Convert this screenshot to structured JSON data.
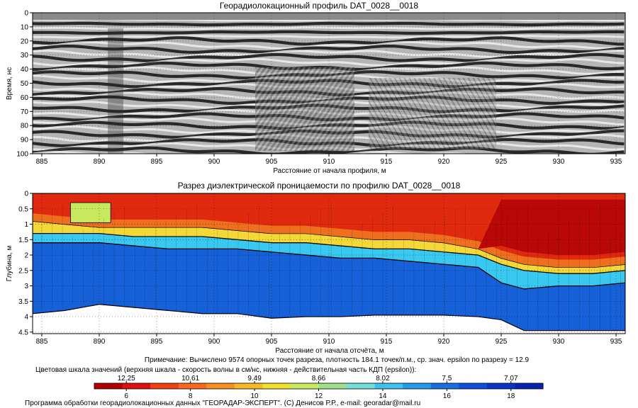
{
  "chart_data": [
    {
      "type": "heatmap",
      "subtype": "radargram",
      "title": "Георадиолокационный профиль  DAT_0028__0018",
      "xlabel": "Расстояние от начала профиля, м",
      "ylabel": "Время, нс",
      "xlim": [
        884.2,
        935.8
      ],
      "ylim": [
        0,
        100
      ],
      "y_inverted": true,
      "x_ticks": [
        885,
        890,
        895,
        900,
        905,
        910,
        915,
        920,
        925,
        930,
        935
      ],
      "y_ticks": [
        0,
        10,
        20,
        30,
        40,
        50,
        60,
        70,
        80,
        90,
        100
      ],
      "colormap": "grayscale",
      "grid": true
    },
    {
      "type": "heatmap",
      "subtype": "section",
      "title": "Разрез диэлектрической проницаемости по профилю DAT_0028__0018",
      "xlabel": "Расстояние от начала отсчёта, м",
      "ylabel": "Глубина, м",
      "xlim": [
        884.2,
        935.8
      ],
      "ylim": [
        0,
        4.55
      ],
      "y_inverted": true,
      "x_ticks": [
        885,
        890,
        895,
        900,
        905,
        910,
        915,
        920,
        925,
        930,
        935
      ],
      "y_ticks": [
        0,
        0.5,
        1,
        1.5,
        2,
        2.5,
        3,
        3.5,
        4,
        4.5
      ],
      "y_tick_labels": [
        "0",
        "0.5",
        "1",
        "1.5",
        "2",
        "2.5",
        "3",
        "3.5",
        "4",
        "4.5"
      ],
      "grid": true,
      "layer_boundaries": {
        "x": [
          884.2,
          887,
          890,
          893,
          896,
          899,
          902,
          905,
          908,
          911,
          914,
          917,
          920,
          923,
          925,
          927,
          930,
          933,
          935.8
        ],
        "red_bottom": [
          0.9,
          1.0,
          1.1,
          1.1,
          1.1,
          1.1,
          1.2,
          1.3,
          1.3,
          1.4,
          1.5,
          1.5,
          1.6,
          1.8,
          2.1,
          2.3,
          2.4,
          2.4,
          2.3
        ],
        "yellow_bottom": [
          1.3,
          1.3,
          1.3,
          1.4,
          1.4,
          1.4,
          1.5,
          1.6,
          1.6,
          1.7,
          1.8,
          1.8,
          1.9,
          2.0,
          2.3,
          2.5,
          2.6,
          2.6,
          2.5
        ],
        "cyan_bottom": [
          1.6,
          1.6,
          1.6,
          1.7,
          1.8,
          1.8,
          1.8,
          1.9,
          2.0,
          2.1,
          2.1,
          2.2,
          2.3,
          2.4,
          2.9,
          3.1,
          3.0,
          3.0,
          2.9
        ],
        "data_bottom": [
          3.9,
          3.8,
          3.6,
          3.7,
          3.8,
          3.9,
          3.9,
          4.05,
          4.0,
          4.0,
          3.95,
          3.95,
          3.95,
          4.0,
          4.1,
          4.45,
          4.45,
          4.45,
          4.45
        ]
      }
    }
  ],
  "note": "Примечание: Вычислено 9574 опорных точек разреза, плотность 184.1 точек/п.м., ср. знач. epsilon по разрезу = 12.9",
  "colorbar": {
    "caption": "Цветовая шкала значений (верхняя шкала - скорость волны в см/нс, нижняя - действительная часть КДП (epsilon)):",
    "top_labels": [
      "12.25",
      "10.61",
      "9.49",
      "8.66",
      "8.02",
      "7.5",
      "7.07"
    ],
    "bottom_labels": [
      "6",
      "8",
      "10",
      "12",
      "14",
      "16",
      "18"
    ],
    "colors": [
      "#B00000",
      "#E01010",
      "#F04010",
      "#F86820",
      "#F89020",
      "#F8B828",
      "#F0E030",
      "#C8E860",
      "#A0E088",
      "#70E0D8",
      "#40C0F0",
      "#2898E8",
      "#1870E0",
      "#0F50D8",
      "#0A36C8",
      "#0A22B0"
    ]
  },
  "footer": "Программа обработки георадиолокационных данных \"ГЕОРАДАР-ЭКСПЕРТ\". (С) Денисов Р.Р., e-mail: georadar@mail.ru"
}
